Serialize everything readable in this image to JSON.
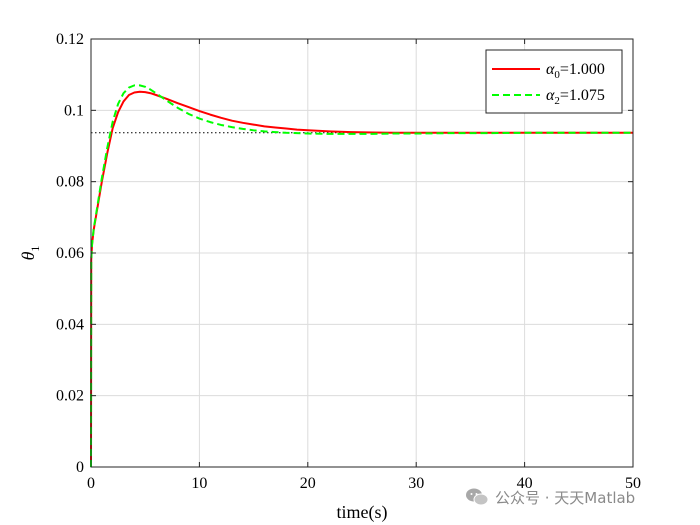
{
  "chart_data": {
    "type": "line",
    "title": "",
    "xlabel": "time(s)",
    "ylabel": "θ",
    "ylabel_subscript": "1",
    "xlim": [
      0,
      50
    ],
    "ylim": [
      0,
      0.12
    ],
    "xticks": [
      0,
      10,
      20,
      30,
      40,
      50
    ],
    "xtick_labels": [
      "0",
      "10",
      "20",
      "30",
      "40",
      "50"
    ],
    "yticks": [
      0,
      0.02,
      0.04,
      0.06,
      0.08,
      0.1,
      0.12
    ],
    "ytick_labels": [
      "0",
      "0.02",
      "0.04",
      "0.06",
      "0.08",
      "0.1",
      "0.12"
    ],
    "grid": true,
    "legend_position": "top-right",
    "reference_line": {
      "y": 0.0937,
      "style": "dotted",
      "color": "#000000"
    },
    "series": [
      {
        "name": "α0=1.000",
        "legend_symbol": "α",
        "legend_sub": "0",
        "legend_value": "=1.000",
        "color": "#ff0000",
        "style": "solid",
        "x": [
          0,
          0.02,
          0.1,
          0.25,
          0.5,
          0.75,
          1,
          1.5,
          2,
          2.5,
          3,
          3.5,
          4,
          4.5,
          5,
          5.5,
          6,
          7,
          8,
          9,
          10,
          11,
          12,
          13,
          14,
          15,
          16,
          17,
          18,
          19,
          20,
          22,
          24,
          26,
          28,
          30,
          33,
          36,
          40,
          45,
          50
        ],
        "y": [
          0,
          0.058,
          0.0625,
          0.0665,
          0.071,
          0.0755,
          0.08,
          0.088,
          0.095,
          0.0995,
          0.1025,
          0.1043,
          0.105,
          0.1052,
          0.1051,
          0.1048,
          0.1043,
          0.1032,
          0.102,
          0.1009,
          0.0998,
          0.0988,
          0.0979,
          0.0971,
          0.0965,
          0.096,
          0.0955,
          0.0952,
          0.0949,
          0.0946,
          0.0944,
          0.0941,
          0.0939,
          0.0938,
          0.0937,
          0.0937,
          0.0937,
          0.0937,
          0.0937,
          0.0937,
          0.0937
        ]
      },
      {
        "name": "α2=1.075",
        "legend_symbol": "α",
        "legend_sub": "2",
        "legend_value": "=1.075",
        "color": "#00ff00",
        "style": "dashed",
        "x": [
          0,
          0.02,
          0.1,
          0.25,
          0.5,
          0.75,
          1,
          1.5,
          2,
          2.5,
          3,
          3.5,
          4,
          4.5,
          5,
          5.5,
          6,
          7,
          8,
          9,
          10,
          11,
          12,
          13,
          14,
          15,
          16,
          17,
          18,
          19,
          20,
          22,
          24,
          26,
          28,
          30,
          33,
          36,
          40,
          45,
          50
        ],
        "y": [
          0,
          0.058,
          0.0625,
          0.0668,
          0.0715,
          0.0762,
          0.081,
          0.0895,
          0.0968,
          0.1018,
          0.1048,
          0.1064,
          0.107,
          0.107,
          0.1066,
          0.1058,
          0.1048,
          0.1027,
          0.1007,
          0.099,
          0.0977,
          0.0967,
          0.0959,
          0.0953,
          0.0948,
          0.0944,
          0.0941,
          0.0939,
          0.0937,
          0.0936,
          0.0935,
          0.0934,
          0.0934,
          0.0934,
          0.0935,
          0.0935,
          0.0936,
          0.0936,
          0.0937,
          0.0937,
          0.0937
        ]
      }
    ]
  },
  "watermark": {
    "icon": "wechat-icon",
    "text": "公众号 · 天天Matlab"
  }
}
